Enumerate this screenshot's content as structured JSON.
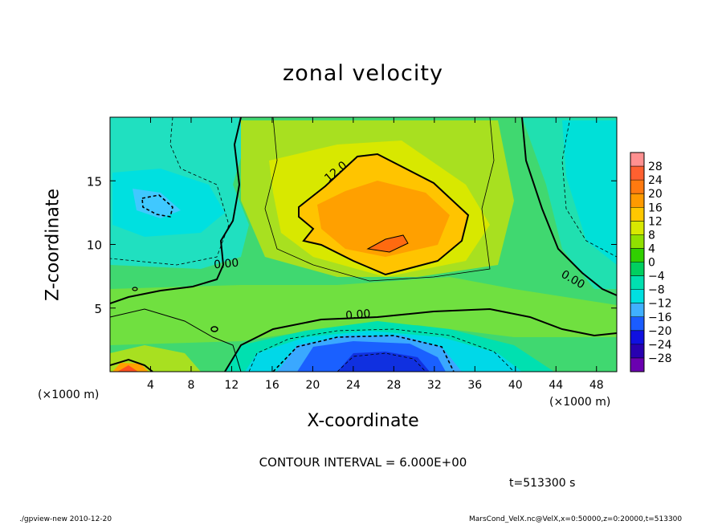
{
  "title": "zonal velocity",
  "footer": {
    "left": "./gpview-new  2010-12-20",
    "right": "MarsCond_VelX.nc@VelX,x=0:50000,z=0:20000,t=513300"
  },
  "contour_interval_text": "CONTOUR INTERVAL = 6.000E+00",
  "time_text": "t=513300 s",
  "chart_data": {
    "type": "heatmap",
    "title": "zonal velocity",
    "xlabel": "X-coordinate",
    "ylabel": "Z-coordinate",
    "x_unit_label": "(×1000 m)",
    "xlim": [
      0,
      50
    ],
    "ylim": [
      0,
      20
    ],
    "x_ticks": [
      4,
      8,
      12,
      16,
      20,
      24,
      28,
      32,
      36,
      40,
      44,
      48
    ],
    "y_ticks": [
      5,
      10,
      15
    ],
    "contour_interval": 6.0,
    "contour_labels": [
      {
        "text": "12.0",
        "x": 22.5,
        "y": 15.5,
        "angle": -40
      },
      {
        "text": "0.00",
        "x": 11.5,
        "y": 8.2,
        "angle": -5
      },
      {
        "text": "0.00",
        "x": 24.5,
        "y": 4.2,
        "angle": -5
      },
      {
        "text": "0.00",
        "x": 45.5,
        "y": 7.0,
        "angle": 30
      }
    ],
    "colorbar": {
      "levels": [
        28,
        24,
        20,
        16,
        12,
        8,
        4,
        0,
        -4,
        -8,
        -12,
        -16,
        -20,
        -24,
        -28
      ],
      "colors": [
        "#ff9090",
        "#ff6030",
        "#ff7a10",
        "#ff9a00",
        "#ffc800",
        "#d8e800",
        "#90e000",
        "#30d000",
        "#00d060",
        "#00e0b0",
        "#00e0e0",
        "#40b0ff",
        "#1a5cff",
        "#1010e0",
        "#2800b0",
        "#6a00b0"
      ]
    },
    "features": [
      {
        "name": "jet core",
        "x": 26.5,
        "y": 12.5,
        "value": 15
      },
      {
        "name": "core maximum",
        "x": 27.5,
        "y": 10.2,
        "value": 19
      },
      {
        "name": "lower easterly",
        "x": 27,
        "y": 1.5,
        "value": -20
      },
      {
        "name": "upper-left easterly",
        "x": 4.5,
        "y": 13.2,
        "value": -10
      },
      {
        "name": "lower-left westerly",
        "x": 1.5,
        "y": 0.3,
        "value": 16
      }
    ],
    "grid": false
  }
}
